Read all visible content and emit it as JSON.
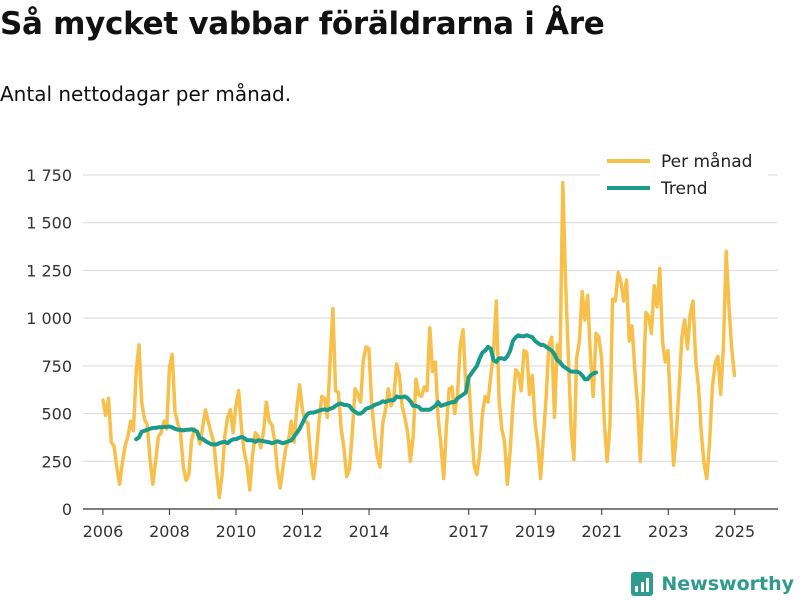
{
  "title": "Så mycket vabbar föräldrarna i Åre",
  "subtitle": "Antal nettodagar per månad.",
  "brand": {
    "name": "Newsworthy",
    "icon": "bar-chart-logo-icon",
    "color": "#2f9a8e"
  },
  "chart_data": {
    "type": "line",
    "x_tick_labels": [
      "2006",
      "2008",
      "2010",
      "2012",
      "2014",
      "2017",
      "2019",
      "2021",
      "2023",
      "2025"
    ],
    "x_tick_values": [
      2006,
      2008,
      2010,
      2012,
      2014,
      2017,
      2019,
      2021,
      2023,
      2025
    ],
    "xlim": [
      2005.4,
      2026.3
    ],
    "ylim": [
      0,
      1800
    ],
    "y_ticks": [
      0,
      250,
      500,
      750,
      1000,
      1250,
      1500,
      1750
    ],
    "y_tick_labels": [
      "0",
      "250",
      "500",
      "750",
      "1 000",
      "1 250",
      "1 500",
      "1 750"
    ],
    "grid": true,
    "legend_position": "top-right",
    "series": [
      {
        "name": "Per månad",
        "color": "#f7c04a",
        "x_start": 2006.0,
        "x_step": 0.0833,
        "values": [
          570,
          490,
          580,
          350,
          330,
          220,
          130,
          240,
          330,
          380,
          460,
          410,
          720,
          860,
          560,
          470,
          440,
          260,
          130,
          250,
          380,
          400,
          460,
          420,
          740,
          810,
          510,
          450,
          400,
          220,
          150,
          180,
          360,
          420,
          400,
          340,
          430,
          520,
          460,
          400,
          350,
          200,
          60,
          180,
          380,
          480,
          520,
          400,
          540,
          620,
          420,
          300,
          230,
          100,
          280,
          400,
          380,
          320,
          410,
          560,
          460,
          440,
          360,
          200,
          110,
          220,
          320,
          360,
          460,
          350,
          530,
          650,
          520,
          460,
          450,
          270,
          160,
          280,
          460,
          590,
          580,
          480,
          770,
          1050,
          620,
          610,
          420,
          320,
          170,
          210,
          400,
          630,
          600,
          560,
          780,
          850,
          840,
          560,
          400,
          280,
          220,
          450,
          520,
          630,
          540,
          580,
          760,
          700,
          540,
          480,
          400,
          250,
          380,
          680,
          600,
          590,
          640,
          620,
          950,
          720,
          770,
          480,
          340,
          160,
          430,
          630,
          640,
          500,
          600,
          860,
          940,
          640,
          690,
          440,
          230,
          180,
          290,
          500,
          590,
          560,
          700,
          820,
          1090,
          570,
          420,
          350,
          130,
          300,
          540,
          730,
          710,
          620,
          830,
          820,
          600,
          700,
          450,
          340,
          160,
          380,
          590,
          860,
          900,
          480,
          860,
          760,
          1710,
          1200,
          810,
          420,
          260,
          790,
          880,
          1140,
          990,
          1120,
          790,
          590,
          920,
          900,
          790,
          460,
          250,
          430,
          1100,
          1090,
          1240,
          1190,
          1090,
          1200,
          880,
          960,
          730,
          540,
          250,
          600,
          1030,
          1010,
          920,
          1170,
          1060,
          1260,
          880,
          770,
          830,
          500,
          230,
          390,
          640,
          900,
          990,
          840,
          1020,
          1090,
          780,
          640,
          400,
          240,
          160,
          350,
          640,
          760,
          800,
          600,
          850,
          1350,
          1060,
          840,
          700
        ]
      },
      {
        "name": "Trend",
        "color": "#1a9a8a",
        "x_start": 2007.0,
        "x_step": 0.0833,
        "values": [
          365,
          375,
          405,
          410,
          415,
          420,
          425,
          425,
          428,
          428,
          430,
          430,
          432,
          428,
          420,
          415,
          415,
          412,
          415,
          415,
          418,
          412,
          405,
          370,
          368,
          355,
          348,
          340,
          338,
          338,
          345,
          350,
          352,
          345,
          358,
          365,
          365,
          372,
          378,
          372,
          360,
          360,
          360,
          352,
          360,
          358,
          355,
          352,
          350,
          345,
          350,
          355,
          350,
          345,
          350,
          355,
          360,
          380,
          400,
          420,
          450,
          480,
          500,
          505,
          505,
          510,
          515,
          520,
          522,
          518,
          525,
          530,
          540,
          550,
          552,
          545,
          545,
          540,
          520,
          510,
          500,
          500,
          510,
          525,
          530,
          535,
          545,
          550,
          555,
          565,
          560,
          568,
          570,
          570,
          590,
          585,
          585,
          590,
          580,
          565,
          540,
          540,
          535,
          520,
          520,
          520,
          520,
          530,
          540,
          560,
          540,
          545,
          550,
          555,
          560,
          560,
          580,
          590,
          600,
          610,
          690,
          710,
          730,
          750,
          790,
          820,
          830,
          850,
          840,
          780,
          770,
          790,
          790,
          785,
          800,
          830,
          880,
          900,
          910,
          905,
          905,
          910,
          905,
          900,
          880,
          870,
          860,
          860,
          850,
          840,
          830,
          810,
          780,
          770,
          750,
          740,
          730,
          720,
          720,
          720,
          715,
          700,
          680,
          680,
          700,
          710,
          715
        ]
      }
    ]
  }
}
